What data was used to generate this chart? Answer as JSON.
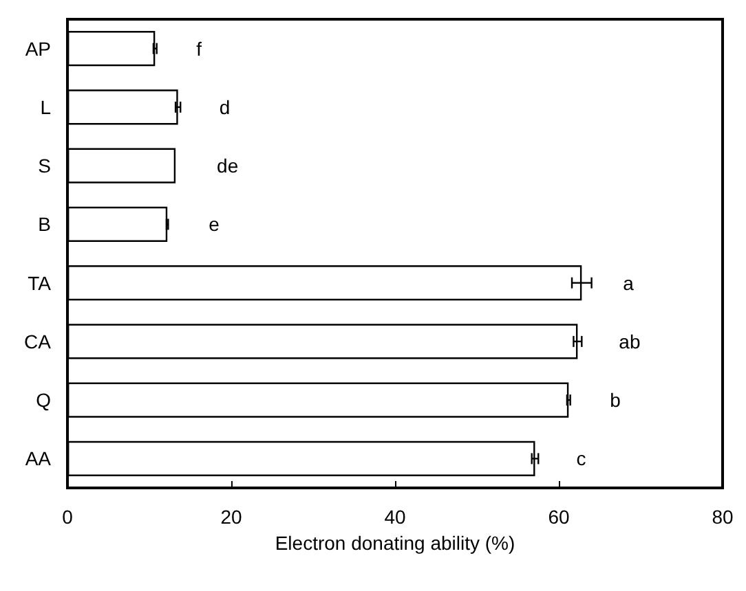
{
  "chart_data": {
    "type": "bar",
    "orientation": "horizontal",
    "xlabel": "Electron donating ability (%)",
    "categories": [
      "AP",
      "L",
      "S",
      "B",
      "TA",
      "CA",
      "Q",
      "AA"
    ],
    "values": [
      10.7,
      13.5,
      13.2,
      12.2,
      62.8,
      62.3,
      61.2,
      57.1
    ],
    "errors": [
      0.2,
      0.3,
      null,
      0.1,
      1.2,
      0.5,
      0.2,
      0.4
    ],
    "value_labels": [
      "f",
      "d",
      "de",
      "e",
      "a",
      "ab",
      "b",
      "c"
    ],
    "color": "#ffffff",
    "xlim": [
      0,
      80
    ],
    "xticks": [
      0,
      20,
      40,
      60,
      80
    ],
    "grid": false
  }
}
